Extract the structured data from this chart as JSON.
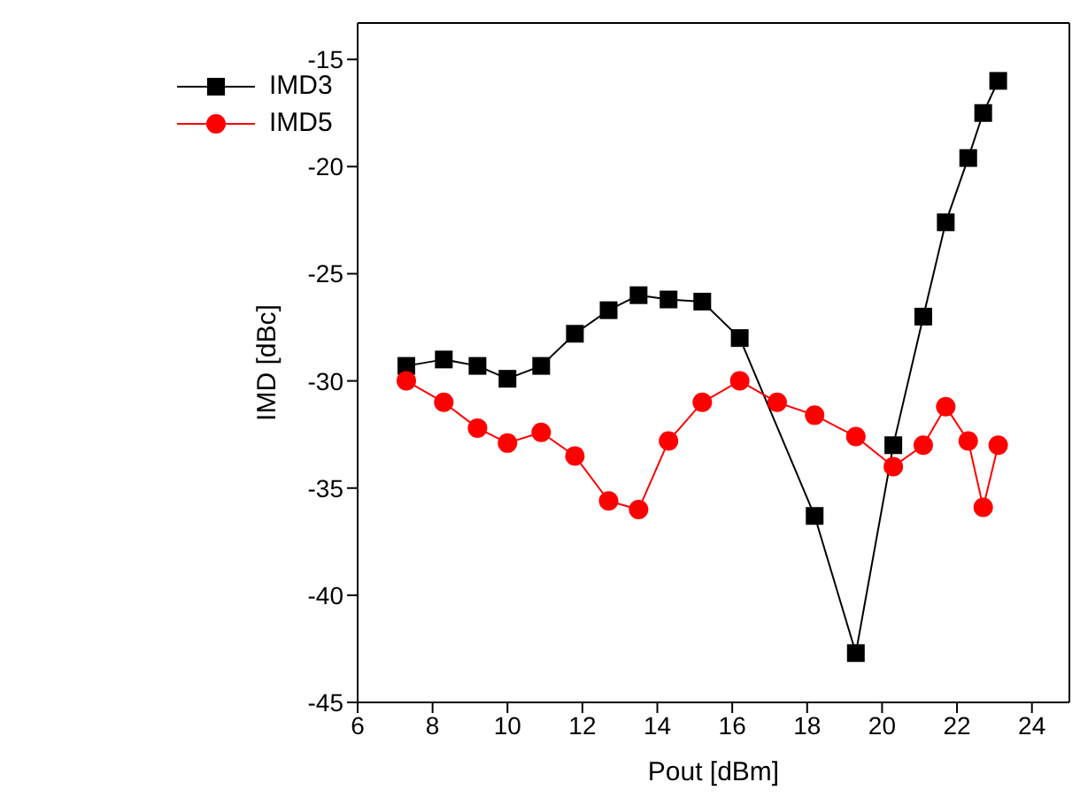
{
  "chart_data": {
    "type": "line",
    "xlabel": "Pout [dBm]",
    "ylabel": "IMD [dBc]",
    "xlim": [
      6,
      25
    ],
    "xticks": [
      6,
      8,
      10,
      12,
      14,
      16,
      18,
      20,
      22,
      24
    ],
    "ylim": [
      -45,
      -13.3
    ],
    "yticks": [
      -45,
      -40,
      -35,
      -30,
      -25,
      -20,
      -15
    ],
    "grid": false,
    "legend": "top left",
    "line_style": "solid",
    "series": [
      {
        "name": "IMD3",
        "color": "#000000",
        "marker": "square",
        "x": [
          7.3,
          8.3,
          9.2,
          10.0,
          10.9,
          11.8,
          12.7,
          13.5,
          14.3,
          15.2,
          16.2,
          18.2,
          19.3,
          20.3,
          21.1,
          21.7,
          22.3,
          22.7,
          23.1
        ],
        "values": [
          -29.3,
          -29.0,
          -29.3,
          -29.9,
          -29.3,
          -27.8,
          -26.7,
          -26.0,
          -26.2,
          -26.3,
          -28.0,
          -36.3,
          -42.7,
          -33.0,
          -27.0,
          -22.6,
          -19.6,
          -17.5,
          -16.0
        ]
      },
      {
        "name": "IMD5",
        "color": "#ff0000",
        "marker": "circle",
        "x": [
          7.3,
          8.3,
          9.2,
          10.0,
          10.9,
          11.8,
          12.7,
          13.5,
          14.3,
          15.2,
          16.2,
          17.2,
          18.2,
          19.3,
          20.3,
          21.1,
          21.7,
          22.3,
          22.7,
          23.1
        ],
        "values": [
          -30.0,
          -31.0,
          -32.2,
          -32.9,
          -32.4,
          -33.5,
          -35.6,
          -36.0,
          -32.8,
          -31.0,
          -30.0,
          -31.0,
          -31.6,
          -32.6,
          -34.0,
          -33.0,
          -31.2,
          -32.8,
          -35.9,
          -33.0
        ]
      }
    ]
  }
}
